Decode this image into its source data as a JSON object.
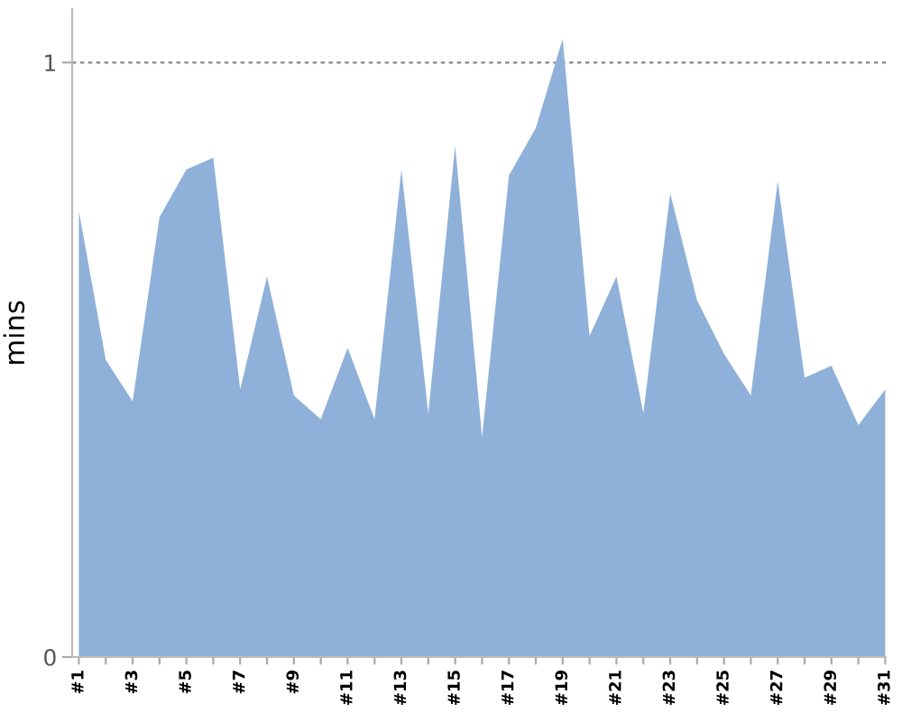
{
  "chart_data": {
    "type": "area",
    "ylabel": "mins",
    "categories": [
      "#1",
      null,
      "#3",
      null,
      "#5",
      null,
      "#7",
      null,
      "#9",
      null,
      "#11",
      null,
      "#13",
      null,
      "#15",
      null,
      "#17",
      null,
      "#19",
      null,
      "#21",
      null,
      "#23",
      null,
      "#25",
      null,
      "#27",
      null,
      "#29",
      null,
      "#31"
    ],
    "series": [
      {
        "color": "#8fb1d9",
        "values": [
          0.75,
          0.5,
          0.43,
          0.74,
          0.82,
          0.84,
          0.45,
          0.64,
          0.44,
          0.4,
          0.52,
          0.4,
          0.82,
          0.41,
          0.86,
          0.37,
          0.81,
          0.89,
          1.04,
          0.54,
          0.64,
          0.41,
          0.78,
          0.6,
          0.51,
          0.44,
          0.8,
          0.47,
          0.49,
          0.39,
          0.45
        ]
      }
    ],
    "ylim": [
      0,
      1.09
    ],
    "yticks": [
      0,
      1
    ],
    "grid": "y"
  }
}
